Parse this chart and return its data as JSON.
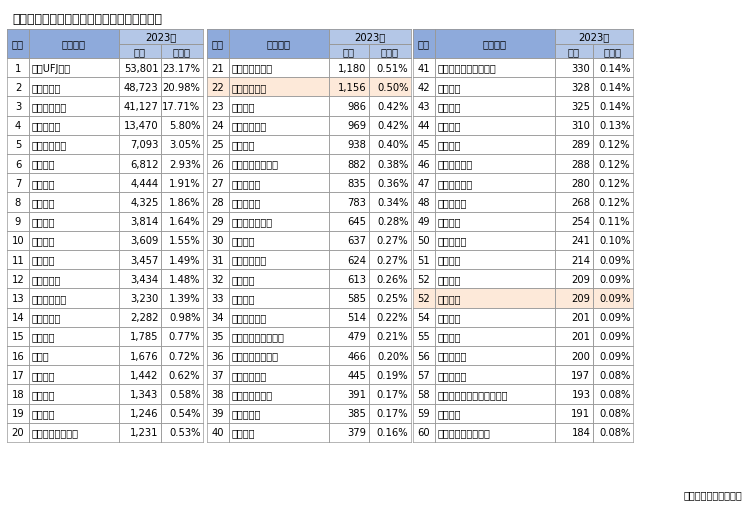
{
  "title": "東京都内の企業のメインバンク数ランキング",
  "source": "東京商工リサーチ調べ",
  "year_label": "2023年",
  "highlighted_rows_idx": [
    21,
    52
  ],
  "highlight_color": "#fde9d9",
  "header_bg": "#8eaadb",
  "subheader_bg": "#b4c7e7",
  "border_color": "#999999",
  "title_color": "#000000",
  "rows": [
    [
      1,
      "三菱UFJ銀行",
      "53,801",
      "23.17%"
    ],
    [
      2,
      "みずほ銀行",
      "48,723",
      "20.98%"
    ],
    [
      3,
      "三井住友銀行",
      "41,127",
      "17.71%"
    ],
    [
      4,
      "りそな銀行",
      "13,470",
      "5.80%"
    ],
    [
      5,
      "きらぼし銀行",
      "7,093",
      "3.05%"
    ],
    [
      6,
      "多摩信金",
      "6,812",
      "2.93%"
    ],
    [
      7,
      "朝日信金",
      "4,444",
      "1.91%"
    ],
    [
      8,
      "西武信金",
      "4,325",
      "1.86%"
    ],
    [
      9,
      "城北信金",
      "3,814",
      "1.64%"
    ],
    [
      10,
      "城南信金",
      "3,609",
      "1.55%"
    ],
    [
      11,
      "巣鴨信金",
      "3,457",
      "1.49%"
    ],
    [
      12,
      "東京東信金",
      "3,434",
      "1.48%"
    ],
    [
      13,
      "さわやか信金",
      "3,230",
      "1.39%"
    ],
    [
      14,
      "東日本銀行",
      "2,282",
      "0.98%"
    ],
    [
      15,
      "青梅信金",
      "1,785",
      "0.77%"
    ],
    [
      16,
      "芝信金",
      "1,676",
      "0.72%"
    ],
    [
      17,
      "横浜銀行",
      "1,442",
      "0.62%"
    ],
    [
      18,
      "西京信金",
      "1,343",
      "0.58%"
    ],
    [
      19,
      "東京信金",
      "1,246",
      "0.54%"
    ],
    [
      20,
      "商工組合中央金庫",
      "1,231",
      "0.53%"
    ],
    [
      21,
      "東京シティ信金",
      "1,180",
      "0.51%"
    ],
    [
      22,
      "足立成和信金",
      "1,156",
      "0.50%"
    ],
    [
      23,
      "千葉銀行",
      "986",
      "0.42%"
    ],
    [
      24,
      "ゆうちょ銀行",
      "969",
      "0.42%"
    ],
    [
      25,
      "興産信金",
      "938",
      "0.40%"
    ],
    [
      26,
      "日本政策金融公庫",
      "882",
      "0.38%"
    ],
    [
      27,
      "瀧野川信金",
      "835",
      "0.36%"
    ],
    [
      28,
      "大東京信組",
      "783",
      "0.34%"
    ],
    [
      29,
      "埼玉りそな銀行",
      "645",
      "0.28%"
    ],
    [
      30,
      "昭和信金",
      "637",
      "0.27%"
    ],
    [
      31,
      "農業協同組合",
      "624",
      "0.27%"
    ],
    [
      32,
      "亀有信金",
      "613",
      "0.26%"
    ],
    [
      33,
      "楽天銀行",
      "585",
      "0.25%"
    ],
    [
      34,
      "第一勧業信組",
      "514",
      "0.22%"
    ],
    [
      35,
      "ジャパンネット銀行",
      "479",
      "0.21%"
    ],
    [
      36,
      "三井住友信託銀行",
      "466",
      "0.20%"
    ],
    [
      37,
      "山梨中央銀行",
      "445",
      "0.19%"
    ],
    [
      38,
      "東京スター銀行",
      "391",
      "0.17%"
    ],
    [
      39,
      "世田谷信金",
      "385",
      "0.17%"
    ],
    [
      40,
      "北陸銀行",
      "379",
      "0.16%"
    ],
    [
      41,
      "住信ＳＢＩネット銀行",
      "330",
      "0.14%"
    ],
    [
      42,
      "目黒信金",
      "328",
      "0.14%"
    ],
    [
      43,
      "東和銀行",
      "325",
      "0.14%"
    ],
    [
      44,
      "川崎信金",
      "310",
      "0.13%"
    ],
    [
      45,
      "群馬銀行",
      "289",
      "0.12%"
    ],
    [
      46,
      "東京ベイ信金",
      "288",
      "0.12%"
    ],
    [
      47,
      "東京三協信金",
      "280",
      "0.12%"
    ],
    [
      48,
      "小松川信金",
      "268",
      "0.12%"
    ],
    [
      49,
      "静岡銀行",
      "254",
      "0.11%"
    ],
    [
      50,
      "武蔵野銀行",
      "241",
      "0.10%"
    ],
    [
      51,
      "七島信組",
      "214",
      "0.09%"
    ],
    [
      52,
      "京葉銀行",
      "209",
      "0.09%"
    ],
    [
      52,
      "東栄信金",
      "209",
      "0.09%"
    ],
    [
      54,
      "青和信組",
      "201",
      "0.09%"
    ],
    [
      55,
      "共立信組",
      "201",
      "0.09%"
    ],
    [
      56,
      "八十二銀行",
      "200",
      "0.09%"
    ],
    [
      57,
      "中ノ郷信組",
      "197",
      "0.08%"
    ],
    [
      58,
      "ＧＭＯあおぞらネット銀行",
      "193",
      "0.08%"
    ],
    [
      59,
      "常陽銀行",
      "191",
      "0.08%"
    ],
    [
      60,
      "三菱ＵＦＪ信託銀行",
      "184",
      "0.08%"
    ]
  ]
}
